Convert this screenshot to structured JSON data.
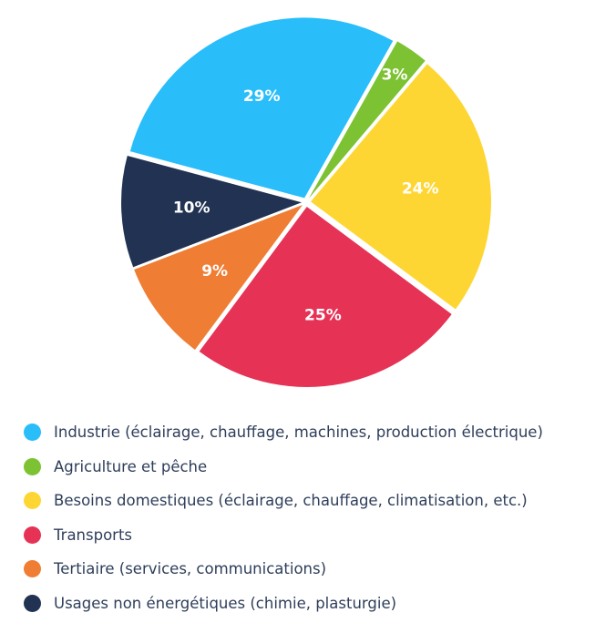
{
  "chart_data": {
    "type": "pie",
    "slices": [
      {
        "label": "Industrie (éclairage, chauffage, machines, production électrique)",
        "value": 29,
        "display": "29%",
        "color": "#29bdfa"
      },
      {
        "label": "Agriculture et pêche",
        "value": 3,
        "display": "3%",
        "color": "#7dc232"
      },
      {
        "label": "Besoins domestiques (éclairage, chauffage, climatisation, etc.)",
        "value": 24,
        "display": "24%",
        "color": "#fed633"
      },
      {
        "label": "Transports",
        "value": 25,
        "display": "25%",
        "color": "#e63255"
      },
      {
        "label": "Tertiaire (services, communications)",
        "value": 9,
        "display": "9%",
        "color": "#ef7d34"
      },
      {
        "label": "Usages non énergétiques (chimie, plasturgie)",
        "value": 10,
        "display": "10%",
        "color": "#213252"
      }
    ],
    "legend_position": "bottom"
  }
}
